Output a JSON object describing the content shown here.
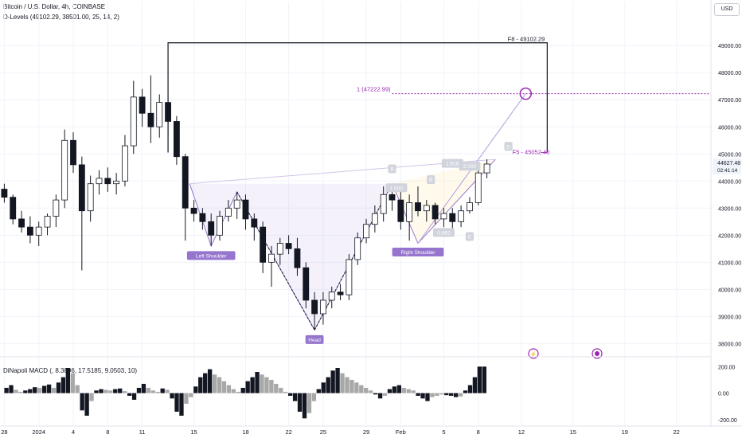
{
  "header": {
    "symbol_line": "Bitcoin / U.S. Dollar, 4h, COINBASE",
    "indicator_line": "D-Levels (49102.29, 38501.00, 25, 14, 2)",
    "currency": "USD"
  },
  "macd": {
    "label": "DiNapoli MACD (, 8.3896, 17.5185, 9.0503, 10)",
    "ticks": [
      {
        "value": 200,
        "label": "200.00"
      },
      {
        "value": 0,
        "label": "0.00"
      },
      {
        "value": -200,
        "label": "-200.00"
      }
    ],
    "range": [
      -230,
      250
    ],
    "histogram": [
      40,
      60,
      25,
      10,
      20,
      30,
      45,
      40,
      55,
      65,
      40,
      80,
      120,
      190,
      150,
      60,
      -130,
      -170,
      -60,
      20,
      30,
      25,
      20,
      30,
      35,
      15,
      -20,
      -50,
      40,
      70,
      40,
      20,
      10,
      35,
      25,
      -40,
      -140,
      -170,
      -80,
      -30,
      50,
      120,
      150,
      180,
      140,
      120,
      90,
      60,
      30,
      10,
      40,
      90,
      120,
      160,
      140,
      120,
      100,
      70,
      40,
      10,
      -20,
      -60,
      -140,
      -190,
      -150,
      -60,
      30,
      80,
      120,
      170,
      190,
      150,
      120,
      100,
      80,
      60,
      40,
      20,
      -10,
      -40,
      -20,
      30,
      50,
      60,
      40,
      30,
      20,
      -20,
      -40,
      -60,
      -30,
      -20,
      -10,
      -15,
      -20,
      -30,
      -25,
      20,
      60,
      120,
      200,
      200
    ]
  },
  "price_axis": {
    "ticks": [
      {
        "value": 49000,
        "label": "49000.00"
      },
      {
        "value": 48000,
        "label": "48000.00"
      },
      {
        "value": 47000,
        "label": "47000.00"
      },
      {
        "value": 46000,
        "label": "46000.00"
      },
      {
        "value": 45000,
        "label": "45000.00"
      },
      {
        "value": 44000,
        "label": "44000.00"
      },
      {
        "value": 43000,
        "label": "43000.00"
      },
      {
        "value": 42000,
        "label": "42000.00"
      },
      {
        "value": 41000,
        "label": "41000.00"
      },
      {
        "value": 40000,
        "label": "40000.00"
      },
      {
        "value": 39000,
        "label": "39000.00"
      },
      {
        "value": 38000,
        "label": "38000.00"
      }
    ],
    "current_price": "44627.48",
    "countdown": "02:41:14"
  },
  "time_axis": {
    "ticks": [
      {
        "t": 0,
        "label": "28"
      },
      {
        "t": 4,
        "label": "2024"
      },
      {
        "t": 8,
        "label": "4"
      },
      {
        "t": 12,
        "label": "8"
      },
      {
        "t": 16,
        "label": "11"
      },
      {
        "t": 22,
        "label": "15"
      },
      {
        "t": 28,
        "label": "18"
      },
      {
        "t": 33,
        "label": "22"
      },
      {
        "t": 37,
        "label": "25"
      },
      {
        "t": 42,
        "label": "29"
      },
      {
        "t": 46,
        "label": "Feb"
      },
      {
        "t": 51,
        "label": "5"
      },
      {
        "t": 55,
        "label": "8"
      },
      {
        "t": 60,
        "label": "12"
      },
      {
        "t": 66,
        "label": "15"
      },
      {
        "t": 72,
        "label": "19"
      },
      {
        "t": 78,
        "label": "22"
      }
    ],
    "range": [
      -0.5,
      82
    ]
  },
  "chart_data": {
    "type": "candlestick",
    "price_range": [
      37600,
      49800
    ],
    "candles": [
      {
        "t": 0,
        "o": 43700,
        "h": 43900,
        "l": 43200,
        "c": 43400
      },
      {
        "t": 1,
        "o": 43400,
        "h": 43500,
        "l": 42400,
        "c": 42600
      },
      {
        "t": 2,
        "o": 42600,
        "h": 42900,
        "l": 42100,
        "c": 42300
      },
      {
        "t": 3,
        "o": 42300,
        "h": 42700,
        "l": 41700,
        "c": 42000
      },
      {
        "t": 4,
        "o": 42000,
        "h": 42500,
        "l": 41600,
        "c": 42300
      },
      {
        "t": 5,
        "o": 42300,
        "h": 42800,
        "l": 42000,
        "c": 42700
      },
      {
        "t": 6,
        "o": 42700,
        "h": 43500,
        "l": 42300,
        "c": 43300
      },
      {
        "t": 7,
        "o": 43300,
        "h": 45900,
        "l": 43000,
        "c": 45500
      },
      {
        "t": 8,
        "o": 45500,
        "h": 45800,
        "l": 44300,
        "c": 44600
      },
      {
        "t": 9,
        "o": 44600,
        "h": 44900,
        "l": 40700,
        "c": 42900
      },
      {
        "t": 10,
        "o": 42900,
        "h": 44200,
        "l": 42500,
        "c": 43900
      },
      {
        "t": 11,
        "o": 43900,
        "h": 44400,
        "l": 43500,
        "c": 44100
      },
      {
        "t": 12,
        "o": 44100,
        "h": 44500,
        "l": 43600,
        "c": 43900
      },
      {
        "t": 13,
        "o": 43900,
        "h": 44300,
        "l": 43500,
        "c": 44000
      },
      {
        "t": 14,
        "o": 44000,
        "h": 45700,
        "l": 43800,
        "c": 45300
      },
      {
        "t": 15,
        "o": 45300,
        "h": 47700,
        "l": 45000,
        "c": 47100
      },
      {
        "t": 16,
        "o": 47100,
        "h": 47400,
        "l": 46000,
        "c": 46500
      },
      {
        "t": 17,
        "o": 46500,
        "h": 47900,
        "l": 45400,
        "c": 46000
      },
      {
        "t": 18,
        "o": 46000,
        "h": 47200,
        "l": 45600,
        "c": 46900
      },
      {
        "t": 19,
        "o": 46900,
        "h": 47000,
        "l": 45700,
        "c": 46200
      },
      {
        "t": 20,
        "o": 46200,
        "h": 46400,
        "l": 44600,
        "c": 44900
      },
      {
        "t": 21,
        "o": 44900,
        "h": 45000,
        "l": 41800,
        "c": 43000
      },
      {
        "t": 22,
        "o": 43000,
        "h": 43300,
        "l": 42500,
        "c": 42800
      },
      {
        "t": 23,
        "o": 42800,
        "h": 43000,
        "l": 42200,
        "c": 42500
      },
      {
        "t": 24,
        "o": 42500,
        "h": 42800,
        "l": 41600,
        "c": 42000
      },
      {
        "t": 25,
        "o": 42000,
        "h": 42900,
        "l": 41800,
        "c": 42700
      },
      {
        "t": 26,
        "o": 42700,
        "h": 43300,
        "l": 42500,
        "c": 43000
      },
      {
        "t": 27,
        "o": 43000,
        "h": 43600,
        "l": 42600,
        "c": 43300
      },
      {
        "t": 28,
        "o": 43300,
        "h": 43500,
        "l": 42200,
        "c": 42600
      },
      {
        "t": 29,
        "o": 42600,
        "h": 42800,
        "l": 41800,
        "c": 42300
      },
      {
        "t": 30,
        "o": 42300,
        "h": 42500,
        "l": 40600,
        "c": 41000
      },
      {
        "t": 31,
        "o": 41000,
        "h": 41600,
        "l": 40100,
        "c": 41300
      },
      {
        "t": 32,
        "o": 41300,
        "h": 41900,
        "l": 40900,
        "c": 41700
      },
      {
        "t": 33,
        "o": 41700,
        "h": 42000,
        "l": 41300,
        "c": 41500
      },
      {
        "t": 34,
        "o": 41500,
        "h": 41900,
        "l": 40500,
        "c": 40800
      },
      {
        "t": 35,
        "o": 40800,
        "h": 41000,
        "l": 39300,
        "c": 39600
      },
      {
        "t": 36,
        "o": 39600,
        "h": 39900,
        "l": 38500,
        "c": 39100
      },
      {
        "t": 37,
        "o": 39100,
        "h": 39900,
        "l": 38700,
        "c": 39600
      },
      {
        "t": 38,
        "o": 39600,
        "h": 40100,
        "l": 39300,
        "c": 39900
      },
      {
        "t": 39,
        "o": 39900,
        "h": 40200,
        "l": 39600,
        "c": 39800
      },
      {
        "t": 40,
        "o": 39800,
        "h": 41300,
        "l": 39600,
        "c": 41100
      },
      {
        "t": 41,
        "o": 41100,
        "h": 42100,
        "l": 40900,
        "c": 41900
      },
      {
        "t": 42,
        "o": 41900,
        "h": 42600,
        "l": 41700,
        "c": 42400
      },
      {
        "t": 43,
        "o": 42400,
        "h": 43100,
        "l": 42100,
        "c": 42800
      },
      {
        "t": 44,
        "o": 42800,
        "h": 43800,
        "l": 42500,
        "c": 43500
      },
      {
        "t": 45,
        "o": 43500,
        "h": 43900,
        "l": 42900,
        "c": 43300
      },
      {
        "t": 46,
        "o": 43300,
        "h": 43600,
        "l": 42200,
        "c": 42500
      },
      {
        "t": 47,
        "o": 42500,
        "h": 43500,
        "l": 41800,
        "c": 43200
      },
      {
        "t": 48,
        "o": 43200,
        "h": 43800,
        "l": 42700,
        "c": 42900
      },
      {
        "t": 49,
        "o": 42900,
        "h": 43300,
        "l": 42500,
        "c": 43100
      },
      {
        "t": 50,
        "o": 43100,
        "h": 43200,
        "l": 42400,
        "c": 42600
      },
      {
        "t": 51,
        "o": 42600,
        "h": 43000,
        "l": 42300,
        "c": 42800
      },
      {
        "t": 52,
        "o": 42800,
        "h": 43000,
        "l": 42100,
        "c": 42500
      },
      {
        "t": 53,
        "o": 42500,
        "h": 43100,
        "l": 42300,
        "c": 42900
      },
      {
        "t": 54,
        "o": 42900,
        "h": 43400,
        "l": 42800,
        "c": 43200
      },
      {
        "t": 55,
        "o": 43200,
        "h": 44600,
        "l": 43100,
        "c": 44300
      },
      {
        "t": 56,
        "o": 44300,
        "h": 44800,
        "l": 44100,
        "c": 44627
      }
    ],
    "levels": [
      {
        "label": "F8 - 49102.29",
        "value": 49102.29
      },
      {
        "label": "F5 - 45052.40",
        "value": 45052.4
      },
      {
        "label": "1 (47222.99)",
        "value": 47222.99
      }
    ],
    "dlevels_box": {
      "t_start": 19,
      "t_end": 63,
      "top": 49102.29,
      "bottom": 45052.4
    },
    "target_line": {
      "t_start": 45,
      "t_end": 82,
      "value": 47222.99
    },
    "target_circle": {
      "t": 60.5,
      "value": 47222.99
    },
    "pattern": {
      "left_shoulder": {
        "t": 24,
        "value": 41600,
        "label": "Left Shoulder"
      },
      "head": {
        "t": 36,
        "value": 38500,
        "label": "Head"
      },
      "right_shoulder": {
        "t": 48,
        "value": 41700,
        "label": "Right Shoulder"
      },
      "neck_left": {
        "t": 21.5,
        "value": 43900
      },
      "neck_mid": {
        "t": 27,
        "value": 43600
      },
      "neck_right": {
        "t": 45,
        "value": 43900
      },
      "pattern_end": {
        "t": 57,
        "value": 44800
      }
    },
    "abcd_labels": [
      {
        "t": 45,
        "value": 44450,
        "label": "B"
      },
      {
        "t": 49.5,
        "value": 44050,
        "label": "B"
      },
      {
        "t": 54,
        "value": 41950,
        "label": "C"
      },
      {
        "t": 58.5,
        "value": 45280,
        "label": "D"
      }
    ],
    "ratio_labels": [
      {
        "t": 45.5,
        "value": 43750,
        "label": "1.000"
      },
      {
        "t": 52,
        "value": 44650,
        "label": "1.618"
      },
      {
        "t": 54,
        "value": 44550,
        "label": "2.000"
      },
      {
        "t": 51,
        "value": 42100,
        "label": "0.882"
      }
    ]
  }
}
